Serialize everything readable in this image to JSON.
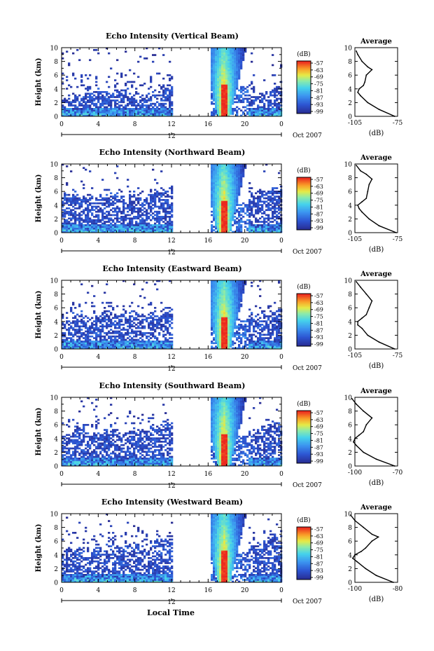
{
  "figure": {
    "xlabel": "Local Time",
    "colorbar_unit": "(dB)",
    "colorbar_ticks": [
      "-57",
      "-63",
      "-69",
      "-75",
      "-81",
      "-87",
      "-93",
      "-99"
    ],
    "time_ticks": [
      "0",
      "4",
      "8",
      "12",
      "16",
      "20",
      "0"
    ],
    "date_marker": "12",
    "date_label": "Oct 2007",
    "height_label": "Height (km)",
    "height_ticks": [
      "0",
      "2",
      "4",
      "6",
      "8",
      "10"
    ],
    "avg_title": "Average",
    "avg_xlabel": "(dB)"
  },
  "chart_data": [
    {
      "type": "heatmap",
      "title": "Echo Intensity (Vertical Beam)",
      "xlabel": "",
      "ylabel": "Height (km)",
      "xlim": [
        0,
        24
      ],
      "ylim": [
        0,
        10
      ],
      "clim": [
        -99,
        -57
      ],
      "gap_hours": [
        12,
        16
      ],
      "echo_top_km": [
        2.6,
        2.8,
        3.4,
        3.6,
        3.8,
        3.6,
        3.4,
        3.2,
        3.6,
        4.2
      ],
      "average_profile": {
        "type": "line",
        "xlim": [
          -105,
          -75
        ],
        "xticks": [
          -105,
          -75
        ],
        "height_km": [
          0,
          1,
          2,
          3,
          3.5,
          4,
          4.5,
          5,
          6,
          6.8,
          7.2,
          8,
          9,
          9.5
        ],
        "db": [
          -77,
          -88,
          -96,
          -101,
          -103,
          -102,
          -99,
          -98,
          -97,
          -93,
          -96,
          -100,
          -103,
          -104
        ]
      }
    },
    {
      "type": "heatmap",
      "title": "Echo Intensity (Northward Beam)",
      "xlabel": "",
      "ylabel": "Height (km)",
      "xlim": [
        0,
        24
      ],
      "ylim": [
        0,
        10
      ],
      "clim": [
        -99,
        -57
      ],
      "gap_hours": [
        12,
        16
      ],
      "echo_top_km": [
        5.2,
        5.6,
        5.0,
        5.4,
        5.8,
        5.2,
        5.6,
        5.4,
        5.8,
        6.2
      ],
      "average_profile": {
        "type": "line",
        "xlim": [
          -105,
          -75
        ],
        "xticks": [
          -105,
          -75
        ],
        "height_km": [
          0,
          1,
          2,
          3,
          3.5,
          4,
          4.5,
          5,
          6,
          7,
          7.8,
          8.5,
          9,
          9.8
        ],
        "db": [
          -76,
          -88,
          -95,
          -100,
          -102,
          -103,
          -100,
          -97,
          -96,
          -95,
          -93,
          -97,
          -101,
          -104
        ]
      }
    },
    {
      "type": "heatmap",
      "title": "Echo Intensity (Eastward Beam)",
      "xlabel": "",
      "ylabel": "Height (km)",
      "xlim": [
        0,
        24
      ],
      "ylim": [
        0,
        10
      ],
      "clim": [
        -99,
        -57
      ],
      "gap_hours": [
        12,
        16
      ],
      "echo_top_km": [
        4.6,
        5.0,
        4.4,
        4.8,
        5.0,
        4.6,
        5.0,
        4.8,
        5.2,
        5.6
      ],
      "average_profile": {
        "type": "line",
        "xlim": [
          -105,
          -75
        ],
        "xticks": [
          -105,
          -75
        ],
        "height_km": [
          0,
          1,
          2,
          3,
          3.5,
          4,
          4.5,
          5,
          6,
          7,
          8,
          9,
          9.8
        ],
        "db": [
          -77,
          -88,
          -96,
          -100,
          -103,
          -103,
          -100,
          -97,
          -95,
          -93,
          -97,
          -101,
          -104
        ]
      }
    },
    {
      "type": "heatmap",
      "title": "Echo Intensity (Southward Beam)",
      "xlabel": "",
      "ylabel": "Height (km)",
      "xlim": [
        0,
        24
      ],
      "ylim": [
        0,
        10
      ],
      "clim": [
        -99,
        -57
      ],
      "gap_hours": [
        12,
        16
      ],
      "echo_top_km": [
        4.8,
        5.4,
        4.6,
        5.0,
        5.4,
        4.8,
        5.2,
        5.0,
        5.6,
        6.4
      ],
      "average_profile": {
        "type": "line",
        "xlim": [
          -100,
          -70
        ],
        "xticks": [
          -100,
          -70
        ],
        "height_km": [
          0,
          1,
          2,
          3,
          3.5,
          4,
          4.5,
          5,
          6,
          7,
          8,
          9,
          9.8
        ],
        "db": [
          -72,
          -85,
          -94,
          -99,
          -101,
          -100,
          -97,
          -94,
          -92,
          -88,
          -94,
          -99,
          -102
        ]
      }
    },
    {
      "type": "heatmap",
      "title": "Echo Intensity (Westward Beam)",
      "xlabel": "",
      "ylabel": "Height (km)",
      "xlim": [
        0,
        24
      ],
      "ylim": [
        0,
        10
      ],
      "clim": [
        -99,
        -57
      ],
      "gap_hours": [
        12,
        16
      ],
      "echo_top_km": [
        4.2,
        4.8,
        4.6,
        5.0,
        5.2,
        4.8,
        5.4,
        5.2,
        5.8,
        6.6
      ],
      "average_profile": {
        "type": "line",
        "xlim": [
          -100,
          -80
        ],
        "xticks": [
          -100,
          -80
        ],
        "height_km": [
          0,
          1,
          2,
          3,
          3.5,
          4,
          4.5,
          5,
          6,
          6.6,
          7,
          8,
          9,
          9.8
        ],
        "db": [
          -82,
          -90,
          -95,
          -99,
          -101,
          -100,
          -97,
          -95,
          -92,
          -89,
          -92,
          -96,
          -100,
          -102
        ]
      }
    }
  ]
}
